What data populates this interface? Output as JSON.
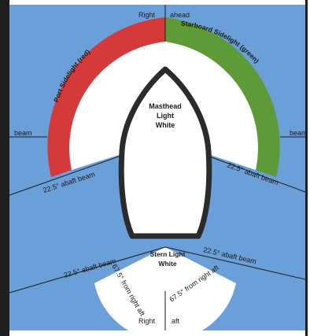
{
  "colors": {
    "water": "#6b9fd8",
    "port": "#d43a3a",
    "starboard": "#5e9a36",
    "hull": "#2b2b2b",
    "frame": "#1f1f1f"
  },
  "labels": {
    "right_top": "Right",
    "ahead": "ahead",
    "port_sidelight": "Port Sidelight (red)",
    "starboard_sidelight": "Starboard Sidelight (green)",
    "beam_left": "beam",
    "beam_right": "beam",
    "abaft_beam_left_upper": "22.5° abaft beam",
    "abaft_beam_right_upper": "22.5° abaft beam",
    "abaft_beam_left_lower": "22.5° abaft beam",
    "abaft_beam_right_lower": "22.5° abaft beam",
    "right_aft_left": "67.5° from right aft",
    "right_aft_right": "67.5° from right aft",
    "masthead_line1": "Masthead",
    "masthead_line2": "Light",
    "masthead_line3": "White",
    "stern_line1": "Stern Light",
    "stern_line2": "White",
    "right_bottom": "Right",
    "aft": "aft"
  }
}
